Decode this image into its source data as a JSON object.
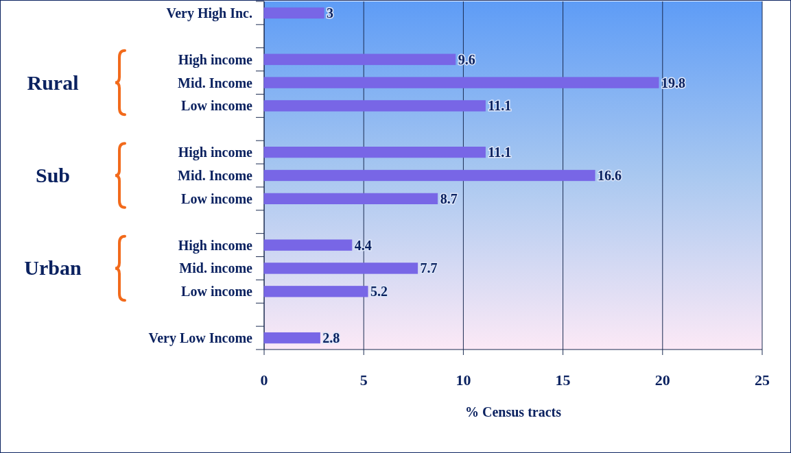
{
  "chart_data": {
    "type": "bar",
    "orientation": "horizontal",
    "xlabel": "% Census tracts",
    "categories": [
      "Very High Inc.",
      null,
      "High income",
      "Mid. Income",
      "Low income",
      null,
      "High income",
      "Mid. Income",
      "Low income",
      null,
      "High income",
      "Mid. income",
      "Low income",
      null,
      "Very Low Income"
    ],
    "values": [
      3,
      null,
      9.6,
      19.8,
      11.1,
      null,
      11.1,
      16.6,
      8.7,
      null,
      4.4,
      7.7,
      5.2,
      null,
      2.8
    ],
    "color": "#7866e6",
    "xlim": [
      0,
      25
    ],
    "xticks": [
      0,
      5,
      10,
      15,
      20,
      25
    ],
    "grid": "x",
    "data_labels": true,
    "annotations": [
      "Rural",
      "Sub",
      "Urban"
    ]
  }
}
